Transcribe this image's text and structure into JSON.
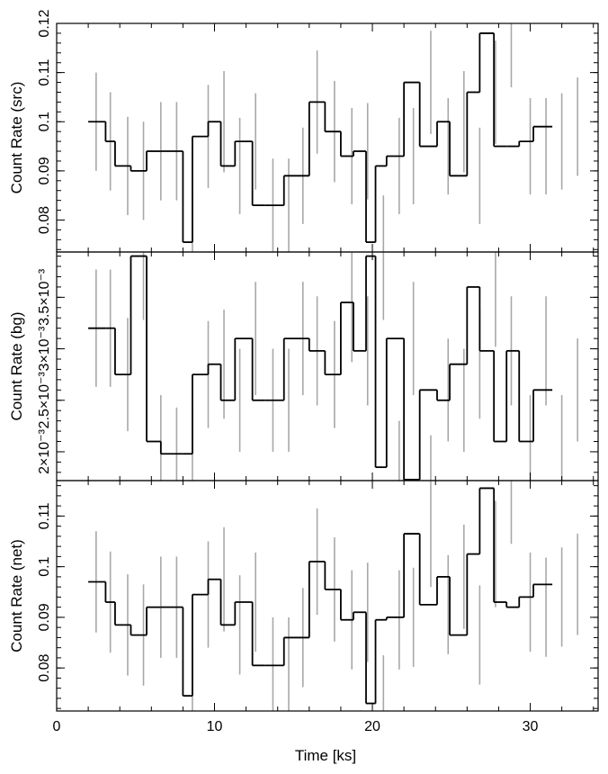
{
  "chart_data": [
    {
      "type": "line",
      "subtype": "step-histogram-with-errorbars",
      "ylabel": "Count Rate (src)",
      "ylim": [
        0.0735,
        0.12
      ],
      "yticks": [
        {
          "value": 0.08,
          "label": "0.08"
        },
        {
          "value": 0.09,
          "label": "0.09"
        },
        {
          "value": 0.1,
          "label": "0.1"
        },
        {
          "value": 0.11,
          "label": "0.11"
        },
        {
          "value": 0.12,
          "label": "0.12"
        }
      ],
      "bin_edges": [
        2.0,
        3.1,
        3.7,
        4.7,
        5.7,
        6.6,
        8.0,
        8.6,
        9.6,
        10.4,
        11.3,
        12.4,
        13.2,
        14.4,
        16.0,
        17.0,
        18.0,
        18.8,
        19.6,
        20.2,
        20.9,
        22.0,
        23.0,
        24.1,
        24.9,
        26.0,
        26.8,
        27.7,
        28.5,
        29.3,
        30.2,
        31.4,
        32.2,
        33.2
      ],
      "x": [
        2.5,
        3.4,
        4.5,
        5.5,
        6.6,
        7.6,
        8.6,
        9.6,
        10.6,
        11.6,
        12.6,
        13.7,
        14.7,
        15.6,
        16.5,
        17.6,
        18.7,
        19.7,
        20.7,
        21.7,
        22.6,
        23.7,
        24.8,
        25.8,
        26.8,
        27.8,
        28.8,
        30.0,
        31.0,
        32.0,
        33.0
      ],
      "y": [
        0.1,
        0.096,
        0.091,
        0.09,
        0.094,
        0.094,
        0.0755,
        0.097,
        0.1,
        0.091,
        0.096,
        0.083,
        0.083,
        0.089,
        0.104,
        0.098,
        0.093,
        0.094,
        0.0755,
        0.091,
        0.093,
        0.108,
        0.095,
        0.1,
        0.089,
        0.106,
        0.118,
        0.095,
        0.095,
        0.096,
        0.099
      ],
      "yerr": [
        0.01,
        0.01,
        0.01,
        0.01,
        0.01,
        0.01,
        0.0095,
        0.0105,
        0.0103,
        0.0098,
        0.0098,
        0.0095,
        0.0095,
        0.0098,
        0.0105,
        0.0103,
        0.0098,
        0.0098,
        0.0095,
        0.0098,
        0.0098,
        0.0105,
        0.0098,
        0.0103,
        0.0098,
        0.0105,
        0.011,
        0.0098,
        0.0098,
        0.0098,
        0.01
      ]
    },
    {
      "type": "line",
      "subtype": "step-histogram-with-errorbars",
      "ylabel": "Count Rate (bg)",
      "ylim": [
        0.00172,
        0.00394
      ],
      "yticks": [
        {
          "value": 0.002,
          "label": "2×10⁻³"
        },
        {
          "value": 0.0025,
          "label": "2.5×10⁻³"
        },
        {
          "value": 0.003,
          "label": "3×10⁻³"
        },
        {
          "value": 0.0035,
          "label": "3.5×10⁻³"
        }
      ],
      "bin_edges": [
        2.0,
        3.1,
        3.7,
        4.7,
        5.7,
        6.6,
        8.0,
        8.6,
        9.6,
        10.4,
        11.3,
        12.4,
        13.2,
        14.4,
        16.0,
        17.0,
        18.0,
        18.8,
        19.6,
        20.2,
        20.9,
        22.0,
        23.0,
        24.1,
        24.9,
        26.0,
        26.8,
        27.7,
        28.5,
        29.3,
        30.2,
        31.4,
        32.2,
        33.2
      ],
      "x": [
        2.5,
        3.4,
        4.5,
        5.5,
        6.6,
        7.6,
        8.6,
        9.6,
        10.6,
        11.6,
        12.6,
        13.7,
        14.7,
        15.6,
        16.5,
        17.6,
        18.7,
        19.7,
        20.7,
        21.7,
        22.6,
        23.7,
        24.8,
        25.8,
        26.8,
        27.8,
        28.8,
        30.0,
        31.0,
        32.0,
        33.0
      ],
      "y": [
        0.0032,
        0.0032,
        0.00275,
        0.0039,
        0.0021,
        0.00198,
        0.00198,
        0.00275,
        0.00285,
        0.0025,
        0.0031,
        0.0025,
        0.0025,
        0.0031,
        0.00298,
        0.00275,
        0.00345,
        0.00298,
        0.0039,
        0.00185,
        0.0031,
        0.00173,
        0.0026,
        0.0025,
        0.00285,
        0.0036,
        0.00298,
        0.0021,
        0.00298,
        0.0021,
        0.0026
      ],
      "yerr": [
        0.00057,
        0.00057,
        0.00055,
        0.00062,
        0.00045,
        0.00045,
        0.00045,
        0.00052,
        0.00053,
        0.0005,
        0.00055,
        0.0005,
        0.0005,
        0.00055,
        0.00053,
        0.00052,
        0.00058,
        0.00053,
        0.00062,
        0.00045,
        0.00055,
        0.00043,
        0.0005,
        0.0005,
        0.00053,
        0.00058,
        0.00053,
        0.00045,
        0.00053,
        0.00045,
        0.0005
      ]
    },
    {
      "type": "line",
      "subtype": "step-histogram-with-errorbars",
      "ylabel": "Count Rate (net)",
      "xlabel": "Time [ks]",
      "xlim": [
        0,
        34.3
      ],
      "xticks": [
        {
          "value": 0,
          "label": "0"
        },
        {
          "value": 10,
          "label": "10"
        },
        {
          "value": 20,
          "label": "20"
        },
        {
          "value": 30,
          "label": "30"
        }
      ],
      "ylim": [
        0.0715,
        0.117
      ],
      "yticks": [
        {
          "value": 0.08,
          "label": "0.08"
        },
        {
          "value": 0.09,
          "label": "0.09"
        },
        {
          "value": 0.1,
          "label": "0.1"
        },
        {
          "value": 0.11,
          "label": "0.11"
        }
      ],
      "bin_edges": [
        2.0,
        3.1,
        3.7,
        4.7,
        5.7,
        6.6,
        8.0,
        8.6,
        9.6,
        10.4,
        11.3,
        12.4,
        13.2,
        14.4,
        16.0,
        17.0,
        18.0,
        18.8,
        19.6,
        20.2,
        20.9,
        22.0,
        23.0,
        24.1,
        24.9,
        26.0,
        26.8,
        27.7,
        28.5,
        29.3,
        30.2,
        31.4,
        32.2,
        33.2
      ],
      "x": [
        2.5,
        3.4,
        4.5,
        5.5,
        6.6,
        7.6,
        8.6,
        9.6,
        10.6,
        11.6,
        12.6,
        13.7,
        14.7,
        15.6,
        16.5,
        17.6,
        18.7,
        19.7,
        20.7,
        21.7,
        22.6,
        23.7,
        24.8,
        25.8,
        26.8,
        27.8,
        28.8,
        30.0,
        31.0,
        32.0,
        33.0
      ],
      "y": [
        0.097,
        0.093,
        0.0885,
        0.0865,
        0.092,
        0.092,
        0.0745,
        0.0945,
        0.0975,
        0.0885,
        0.093,
        0.0805,
        0.0805,
        0.086,
        0.101,
        0.0955,
        0.0895,
        0.091,
        0.073,
        0.0895,
        0.09,
        0.1065,
        0.0925,
        0.098,
        0.0865,
        0.1025,
        0.1155,
        0.093,
        0.092,
        0.094,
        0.0965
      ],
      "yerr": [
        0.01,
        0.01,
        0.01,
        0.01,
        0.01,
        0.01,
        0.0095,
        0.0105,
        0.0103,
        0.0098,
        0.0098,
        0.0095,
        0.0095,
        0.0098,
        0.0105,
        0.0103,
        0.0098,
        0.0098,
        0.0095,
        0.0098,
        0.0098,
        0.0105,
        0.0098,
        0.0103,
        0.0098,
        0.0105,
        0.011,
        0.0098,
        0.0098,
        0.0098,
        0.01
      ]
    }
  ],
  "colors": {
    "step_line": "#000000",
    "error_bar": "#a8a8a8",
    "axis": "#000000"
  }
}
